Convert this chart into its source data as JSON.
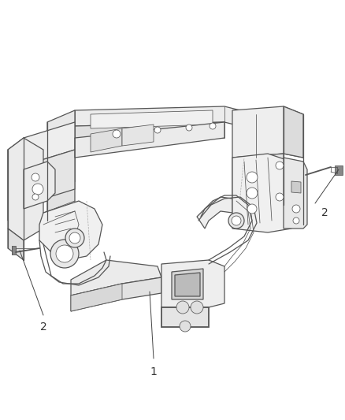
{
  "bg_color": "#ffffff",
  "line_color": "#555555",
  "lw": 0.9,
  "lw_thin": 0.55,
  "lw_thick": 1.3,
  "fig_width": 4.38,
  "fig_height": 5.33,
  "dpi": 100,
  "label_fontsize": 10,
  "annotation_color": "#333333",
  "part_fill": "#f0f0f0",
  "part_fill2": "#e8e8e8",
  "part_fill3": "#d8d8d8"
}
